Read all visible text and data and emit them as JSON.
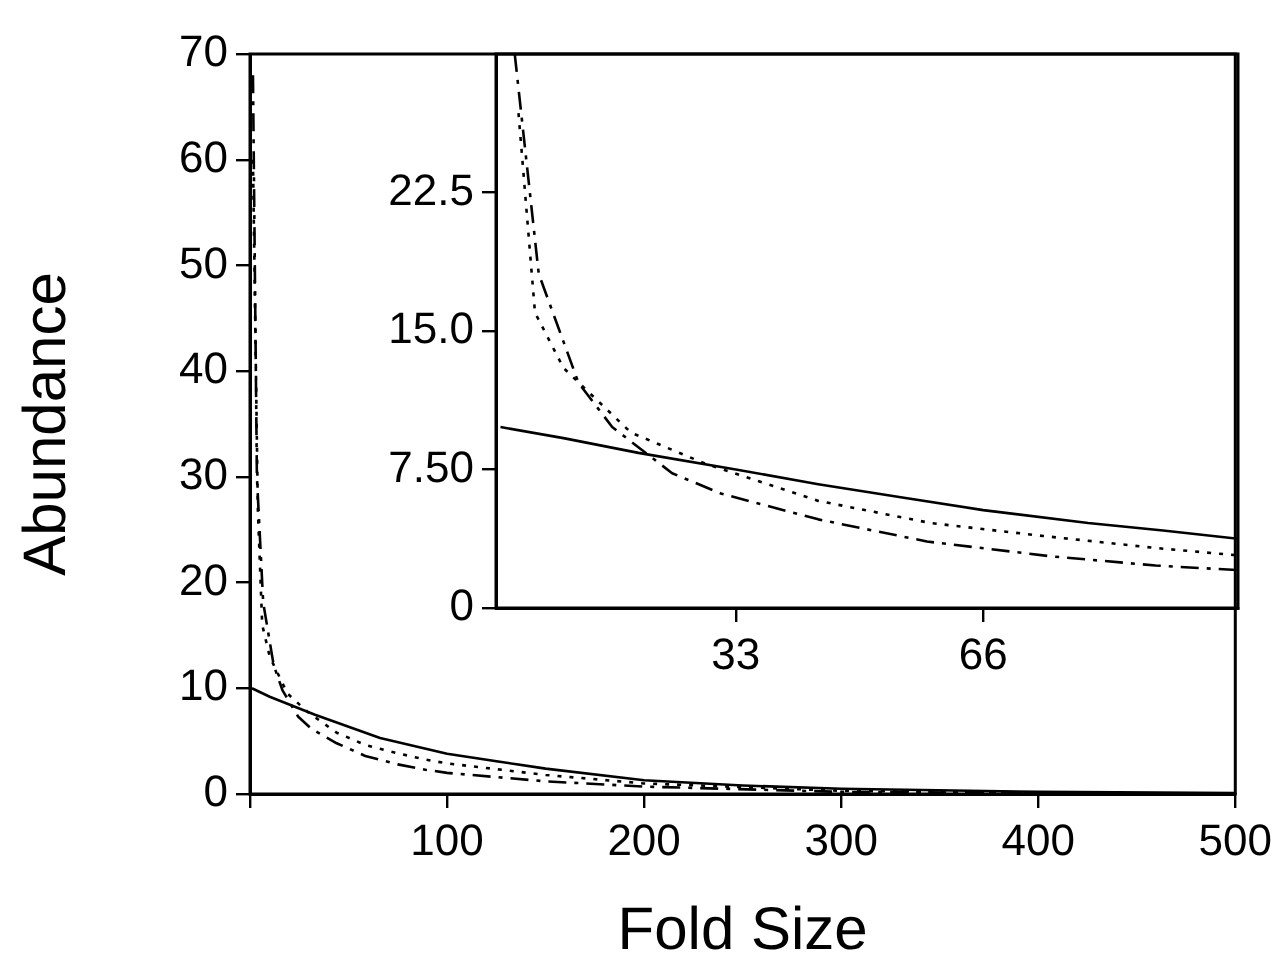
{
  "chart_data": [
    {
      "type": "line",
      "xlabel": "Fold Size",
      "ylabel": "Abundance",
      "xlim": [
        0,
        500
      ],
      "ylim": [
        0,
        70
      ],
      "xticks": [
        {
          "value": 0,
          "label": null
        },
        100,
        200,
        300,
        400,
        500
      ],
      "yticks": [
        0,
        10,
        20,
        30,
        40,
        50,
        60,
        70
      ],
      "grid": false,
      "legend": false,
      "marker": "none",
      "series": [
        {
          "color": "#000000",
          "line_style": "solid",
          "x": [
            1,
            10,
            33,
            66,
            100,
            150,
            200,
            250,
            300,
            400,
            500
          ],
          "values": [
            10,
            9.2,
            7.5,
            5.3,
            3.8,
            2.4,
            1.3,
            0.8,
            0.5,
            0.2,
            0.1
          ]
        },
        {
          "color": "#000000",
          "line_style": "dashed",
          "x": [
            1.5,
            3.5,
            6.7,
            12,
            16.5,
            24.5,
            31,
            44,
            58.5,
            75,
            89,
            100,
            150,
            200,
            300,
            400,
            500
          ],
          "values": [
            68,
            30,
            18.1,
            12.2,
            9.8,
            7.3,
            6.2,
            4.8,
            3.6,
            2.8,
            2.3,
            2,
            1.2,
            0.7,
            0.2,
            0.1,
            0
          ]
        },
        {
          "color": "#000000",
          "line_style": "dotted",
          "x": [
            1.5,
            4,
            6.2,
            10,
            19,
            29,
            44,
            59,
            74,
            89,
            100,
            150,
            200,
            300,
            400,
            500
          ],
          "values": [
            60,
            26.8,
            16,
            13,
            9.5,
            7.8,
            5.8,
            4.6,
            3.9,
            3.25,
            2.9,
            1.8,
            1,
            0.3,
            0.1,
            0
          ]
        }
      ]
    },
    {
      "type": "line",
      "xlim": [
        1,
        100
      ],
      "ylim": [
        0,
        30
      ],
      "xticks": [
        33,
        66
      ],
      "yticks": [
        0,
        {
          "value": 7.5,
          "label": "7.50"
        },
        {
          "value": 15,
          "label": "15.0"
        },
        22.5
      ],
      "grid": false,
      "legend": false,
      "marker": "none",
      "series": [
        {
          "color": "#000000",
          "line_style": "solid",
          "x": [
            1.6,
            10,
            20,
            33,
            44,
            55,
            66,
            80,
            90,
            100
          ],
          "values": [
            9.8,
            9.2,
            8.4,
            7.5,
            6.7,
            6,
            5.3,
            4.6,
            4.2,
            3.75
          ]
        },
        {
          "color": "#000000",
          "line_style": "dashed",
          "x": [
            3.5,
            6.7,
            12,
            16.5,
            24.5,
            31,
            44,
            58.5,
            75,
            89,
            100
          ],
          "values": [
            30,
            18.1,
            12.2,
            9.8,
            7.3,
            6.2,
            4.8,
            3.6,
            2.8,
            2.3,
            2.05
          ]
        },
        {
          "color": "#000000",
          "line_style": "dotted",
          "x": [
            4,
            6.2,
            10,
            19,
            29,
            44,
            59,
            74,
            89,
            100
          ],
          "values": [
            26.8,
            16,
            13,
            9.5,
            7.8,
            5.8,
            4.6,
            3.9,
            3.25,
            2.85
          ]
        }
      ]
    }
  ]
}
